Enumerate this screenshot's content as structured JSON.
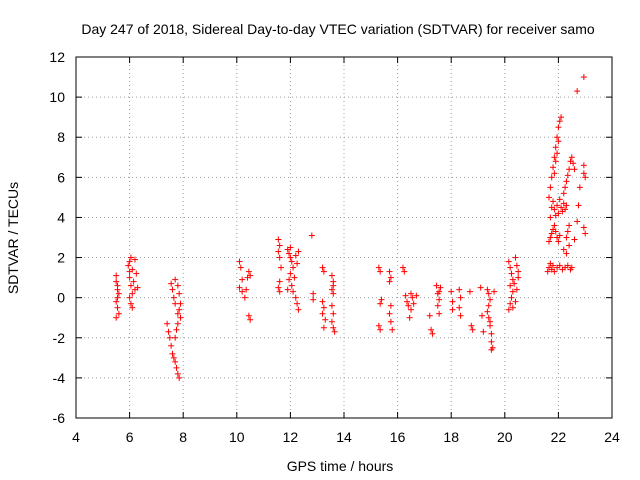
{
  "chart_data": {
    "type": "scatter",
    "title": "Day 247 of 2018, Sidereal Day-to-day VTEC variation (SDTVAR) for receiver samo",
    "xlabel": "GPS time / hours",
    "ylabel": "SDTVAR / TECUs",
    "xlim": [
      4,
      24
    ],
    "ylim": [
      -6,
      12
    ],
    "xticks": [
      4,
      6,
      8,
      10,
      12,
      14,
      16,
      18,
      20,
      22,
      24
    ],
    "yticks": [
      -6,
      -4,
      -2,
      0,
      2,
      4,
      6,
      8,
      10,
      12
    ],
    "grid": true,
    "marker": "+",
    "series": [
      {
        "name": "SDTVAR",
        "color": "#ff0000",
        "points": [
          [
            5.5,
            1.1
          ],
          [
            5.5,
            0.8
          ],
          [
            5.55,
            0.6
          ],
          [
            5.55,
            0.4
          ],
          [
            5.6,
            0.2
          ],
          [
            5.5,
            -0.2
          ],
          [
            5.55,
            -0.5
          ],
          [
            5.6,
            -0.8
          ],
          [
            5.5,
            -1.0
          ],
          [
            5.55,
            0.0
          ],
          [
            5.95,
            1.6
          ],
          [
            6.0,
            1.8
          ],
          [
            6.05,
            2.0
          ],
          [
            6.1,
            1.4
          ],
          [
            6.0,
            1.0
          ],
          [
            6.05,
            0.6
          ],
          [
            6.1,
            0.2
          ],
          [
            6.0,
            0.0
          ],
          [
            6.05,
            -0.3
          ],
          [
            6.1,
            -0.5
          ],
          [
            6.2,
            1.9
          ],
          [
            6.2,
            0.4
          ],
          [
            6.25,
            1.2
          ],
          [
            6.15,
            0.8
          ],
          [
            6.3,
            0.5
          ],
          [
            6.0,
            1.3
          ],
          [
            7.4,
            -1.3
          ],
          [
            7.45,
            -1.7
          ],
          [
            7.5,
            -2.0
          ],
          [
            7.55,
            -2.4
          ],
          [
            7.6,
            -2.8
          ],
          [
            7.65,
            -3.0
          ],
          [
            7.7,
            -3.2
          ],
          [
            7.75,
            -3.5
          ],
          [
            7.8,
            -3.8
          ],
          [
            7.85,
            -4.0
          ],
          [
            7.55,
            0.7
          ],
          [
            7.6,
            0.4
          ],
          [
            7.7,
            0.9
          ],
          [
            7.8,
            0.6
          ],
          [
            7.85,
            0.2
          ],
          [
            7.9,
            -0.3
          ],
          [
            7.85,
            -0.6
          ],
          [
            7.9,
            -1.0
          ],
          [
            7.8,
            -1.3
          ],
          [
            7.75,
            -1.6
          ],
          [
            7.7,
            -2.0
          ],
          [
            7.8,
            -0.8
          ],
          [
            7.7,
            -0.3
          ],
          [
            7.65,
            0.0
          ],
          [
            10.1,
            1.8
          ],
          [
            10.15,
            1.5
          ],
          [
            10.2,
            0.9
          ],
          [
            10.1,
            0.5
          ],
          [
            10.2,
            0.3
          ],
          [
            10.3,
            0.0
          ],
          [
            10.4,
            1.0
          ],
          [
            10.45,
            1.3
          ],
          [
            10.5,
            1.1
          ],
          [
            10.45,
            -0.9
          ],
          [
            10.5,
            -1.1
          ],
          [
            10.35,
            0.4
          ],
          [
            11.55,
            2.9
          ],
          [
            11.6,
            2.6
          ],
          [
            11.55,
            2.3
          ],
          [
            11.6,
            2.0
          ],
          [
            11.65,
            1.5
          ],
          [
            11.6,
            0.8
          ],
          [
            11.55,
            0.5
          ],
          [
            11.6,
            0.3
          ],
          [
            11.9,
            2.4
          ],
          [
            11.95,
            2.2
          ],
          [
            12.0,
            2.0
          ],
          [
            12.05,
            1.8
          ],
          [
            12.1,
            1.5
          ],
          [
            12.0,
            1.2
          ],
          [
            11.95,
            0.9
          ],
          [
            12.05,
            0.6
          ],
          [
            12.1,
            0.3
          ],
          [
            12.2,
            0.0
          ],
          [
            12.25,
            -0.3
          ],
          [
            12.3,
            -0.6
          ],
          [
            12.2,
            2.1
          ],
          [
            12.3,
            2.3
          ],
          [
            12.15,
            1.0
          ],
          [
            11.9,
            0.4
          ],
          [
            12.25,
            1.7
          ],
          [
            12.0,
            2.5
          ],
          [
            12.8,
            3.1
          ],
          [
            12.85,
            0.2
          ],
          [
            12.85,
            -0.1
          ],
          [
            13.2,
            1.5
          ],
          [
            13.25,
            1.3
          ],
          [
            13.2,
            -0.2
          ],
          [
            13.25,
            -0.5
          ],
          [
            13.2,
            -0.8
          ],
          [
            13.3,
            -1.1
          ],
          [
            13.25,
            -1.5
          ],
          [
            13.55,
            1.1
          ],
          [
            13.6,
            0.8
          ],
          [
            13.55,
            0.4
          ],
          [
            13.6,
            0.2
          ],
          [
            13.55,
            -0.4
          ],
          [
            13.6,
            -0.8
          ],
          [
            13.55,
            -1.2
          ],
          [
            13.6,
            -1.5
          ],
          [
            13.65,
            -1.7
          ],
          [
            13.6,
            0.6
          ],
          [
            15.3,
            1.5
          ],
          [
            15.35,
            1.3
          ],
          [
            15.4,
            -0.1
          ],
          [
            15.35,
            -0.3
          ],
          [
            15.3,
            -1.4
          ],
          [
            15.35,
            -1.6
          ],
          [
            15.7,
            1.3
          ],
          [
            15.75,
            1.0
          ],
          [
            15.7,
            0.8
          ],
          [
            15.75,
            -0.4
          ],
          [
            15.7,
            -0.8
          ],
          [
            15.75,
            -1.2
          ],
          [
            15.8,
            -1.6
          ],
          [
            16.2,
            1.5
          ],
          [
            16.25,
            1.3
          ],
          [
            16.3,
            0.1
          ],
          [
            16.35,
            -0.2
          ],
          [
            16.4,
            -0.4
          ],
          [
            16.5,
            0.2
          ],
          [
            16.55,
            0.0
          ],
          [
            16.6,
            -0.3
          ],
          [
            16.5,
            -0.6
          ],
          [
            16.45,
            -1.0
          ],
          [
            16.7,
            0.1
          ],
          [
            17.2,
            -0.9
          ],
          [
            17.25,
            -1.6
          ],
          [
            17.3,
            -1.8
          ],
          [
            17.45,
            0.6
          ],
          [
            17.5,
            0.2
          ],
          [
            17.55,
            -0.1
          ],
          [
            17.5,
            -0.4
          ],
          [
            17.55,
            -0.8
          ],
          [
            17.6,
            0.5
          ],
          [
            17.55,
            0.3
          ],
          [
            18.0,
            0.3
          ],
          [
            18.05,
            -0.2
          ],
          [
            18.05,
            -0.6
          ],
          [
            18.3,
            0.4
          ],
          [
            18.35,
            0.0
          ],
          [
            18.3,
            -0.5
          ],
          [
            18.35,
            -0.9
          ],
          [
            18.7,
            0.3
          ],
          [
            18.75,
            -1.4
          ],
          [
            18.8,
            -1.6
          ],
          [
            19.1,
            0.5
          ],
          [
            19.15,
            -0.9
          ],
          [
            19.2,
            -1.7
          ],
          [
            19.35,
            0.4
          ],
          [
            19.4,
            0.2
          ],
          [
            19.45,
            -0.1
          ],
          [
            19.4,
            -0.4
          ],
          [
            19.35,
            -0.7
          ],
          [
            19.4,
            -1.0
          ],
          [
            19.45,
            -1.4
          ],
          [
            19.5,
            -1.8
          ],
          [
            19.5,
            -2.2
          ],
          [
            19.55,
            -2.5
          ],
          [
            19.6,
            0.3
          ],
          [
            19.5,
            -2.6
          ],
          [
            19.45,
            -1.2
          ],
          [
            20.15,
            1.8
          ],
          [
            20.2,
            1.5
          ],
          [
            20.25,
            1.2
          ],
          [
            20.3,
            0.9
          ],
          [
            20.2,
            0.6
          ],
          [
            20.3,
            0.3
          ],
          [
            20.25,
            0.0
          ],
          [
            20.2,
            -0.3
          ],
          [
            20.3,
            -0.5
          ],
          [
            20.4,
            2.0
          ],
          [
            20.45,
            1.6
          ],
          [
            20.5,
            1.0
          ],
          [
            20.45,
            0.4
          ],
          [
            20.4,
            -0.2
          ],
          [
            20.5,
            1.3
          ],
          [
            20.35,
            0.7
          ],
          [
            20.15,
            -0.6
          ],
          [
            21.6,
            1.3
          ],
          [
            21.65,
            1.5
          ],
          [
            21.7,
            1.7
          ],
          [
            21.75,
            1.4
          ],
          [
            21.8,
            1.6
          ],
          [
            21.85,
            1.3
          ],
          [
            21.95,
            1.5
          ],
          [
            22.05,
            1.6
          ],
          [
            22.15,
            1.4
          ],
          [
            22.25,
            1.5
          ],
          [
            22.35,
            1.6
          ],
          [
            22.45,
            1.4
          ],
          [
            22.5,
            1.5
          ],
          [
            21.65,
            2.8
          ],
          [
            21.7,
            3.0
          ],
          [
            21.75,
            3.2
          ],
          [
            21.8,
            3.4
          ],
          [
            21.85,
            3.6
          ],
          [
            21.9,
            3.3
          ],
          [
            21.95,
            3.0
          ],
          [
            22.0,
            2.8
          ],
          [
            22.05,
            3.1
          ],
          [
            21.7,
            4.0
          ],
          [
            21.75,
            4.5
          ],
          [
            21.8,
            4.8
          ],
          [
            21.85,
            4.4
          ],
          [
            21.9,
            4.1
          ],
          [
            21.95,
            4.6
          ],
          [
            22.0,
            4.2
          ],
          [
            22.05,
            4.9
          ],
          [
            22.1,
            4.5
          ],
          [
            22.15,
            4.3
          ],
          [
            22.2,
            4.7
          ],
          [
            22.25,
            4.4
          ],
          [
            22.3,
            4.6
          ],
          [
            21.65,
            5.0
          ],
          [
            21.7,
            5.5
          ],
          [
            21.75,
            6.0
          ],
          [
            21.8,
            6.5
          ],
          [
            21.85,
            7.0
          ],
          [
            21.9,
            7.5
          ],
          [
            21.95,
            8.0
          ],
          [
            22.0,
            8.5
          ],
          [
            22.05,
            8.8
          ],
          [
            22.1,
            9.0
          ],
          [
            22.0,
            7.8
          ],
          [
            21.95,
            7.2
          ],
          [
            21.9,
            6.8
          ],
          [
            21.85,
            6.2
          ],
          [
            22.2,
            5.2
          ],
          [
            22.25,
            5.5
          ],
          [
            22.3,
            5.8
          ],
          [
            22.35,
            6.1
          ],
          [
            22.4,
            6.4
          ],
          [
            22.45,
            6.8
          ],
          [
            22.5,
            7.0
          ],
          [
            22.3,
            3.0
          ],
          [
            22.35,
            3.3
          ],
          [
            22.4,
            3.6
          ],
          [
            22.2,
            2.4
          ],
          [
            22.3,
            2.2
          ],
          [
            22.4,
            2.6
          ],
          [
            22.6,
            2.9
          ],
          [
            22.7,
            3.8
          ],
          [
            22.75,
            4.6
          ],
          [
            22.8,
            5.5
          ],
          [
            22.55,
            6.7
          ],
          [
            22.6,
            6.4
          ],
          [
            22.95,
            6.2
          ],
          [
            23.0,
            6.0
          ],
          [
            22.95,
            6.6
          ],
          [
            22.95,
            3.5
          ],
          [
            23.0,
            3.2
          ],
          [
            22.7,
            10.3
          ],
          [
            22.95,
            11.0
          ]
        ]
      }
    ]
  }
}
